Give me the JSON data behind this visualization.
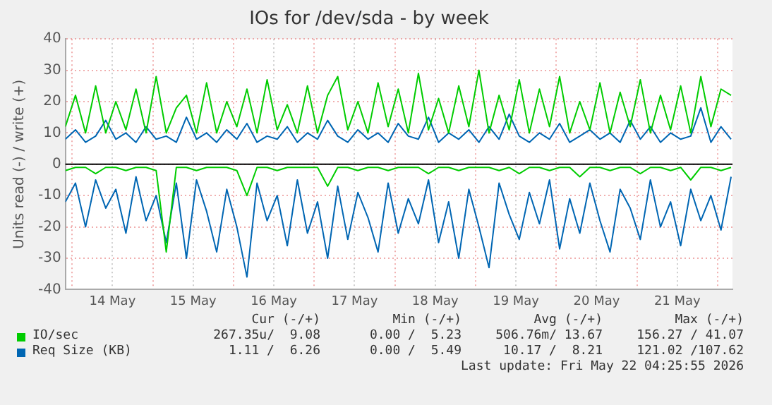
{
  "chart_data": {
    "type": "line",
    "title": "IOs for /dev/sda - by week",
    "ylabel": "Units read (-) / write (+)",
    "x": [
      "2026-05-13T22:00",
      "2026-05-14T01:00",
      "2026-05-14T04:00",
      "2026-05-14T07:00",
      "2026-05-14T10:00",
      "2026-05-14T13:00",
      "2026-05-14T16:00",
      "2026-05-14T19:00",
      "2026-05-14T22:00",
      "2026-05-15T01:00",
      "2026-05-15T04:00",
      "2026-05-15T07:00",
      "2026-05-15T10:00",
      "2026-05-15T13:00",
      "2026-05-15T16:00",
      "2026-05-15T19:00",
      "2026-05-15T22:00",
      "2026-05-16T01:00",
      "2026-05-16T04:00",
      "2026-05-16T07:00",
      "2026-05-16T10:00",
      "2026-05-16T13:00",
      "2026-05-16T16:00",
      "2026-05-16T19:00",
      "2026-05-16T22:00",
      "2026-05-17T01:00",
      "2026-05-17T04:00",
      "2026-05-17T07:00",
      "2026-05-17T10:00",
      "2026-05-17T13:00",
      "2026-05-17T16:00",
      "2026-05-17T19:00",
      "2026-05-17T22:00",
      "2026-05-18T01:00",
      "2026-05-18T04:00",
      "2026-05-18T07:00",
      "2026-05-18T10:00",
      "2026-05-18T13:00",
      "2026-05-18T16:00",
      "2026-05-18T19:00",
      "2026-05-18T22:00",
      "2026-05-19T01:00",
      "2026-05-19T04:00",
      "2026-05-19T07:00",
      "2026-05-19T10:00",
      "2026-05-19T13:00",
      "2026-05-19T16:00",
      "2026-05-19T19:00",
      "2026-05-19T22:00",
      "2026-05-20T01:00",
      "2026-05-20T04:00",
      "2026-05-20T07:00",
      "2026-05-20T10:00",
      "2026-05-20T13:00",
      "2026-05-20T16:00",
      "2026-05-20T19:00",
      "2026-05-20T22:00",
      "2026-05-21T01:00",
      "2026-05-21T04:00",
      "2026-05-21T07:00",
      "2026-05-21T10:00",
      "2026-05-21T13:00",
      "2026-05-21T16:00",
      "2026-05-21T19:00",
      "2026-05-21T22:00",
      "2026-05-22T01:00",
      "2026-05-22T04:00"
    ],
    "series": [
      {
        "name": "IO/sec",
        "color": "#00cc00",
        "values": [
          12,
          22,
          10,
          25,
          10,
          20,
          11,
          24,
          10,
          28,
          10,
          18,
          22,
          10,
          26,
          10,
          20,
          12,
          24,
          10,
          27,
          11,
          19,
          10,
          25,
          10,
          22,
          28,
          11,
          20,
          10,
          26,
          12,
          24,
          10,
          29,
          11,
          21,
          10,
          25,
          12,
          30,
          10,
          22,
          11,
          27,
          10,
          24,
          12,
          28,
          10,
          20,
          11,
          26,
          10,
          23,
          12,
          27,
          10,
          22,
          11,
          25,
          10,
          28,
          12,
          24,
          22
        ]
      },
      {
        "color": "#00cc00",
        "values": [
          -2,
          -1,
          -1,
          -3,
          -1,
          -1,
          -2,
          -1,
          -1,
          -2,
          -28,
          -1,
          -1,
          -2,
          -1,
          -1,
          -1,
          -2,
          -10,
          -1,
          -1,
          -2,
          -1,
          -1,
          -1,
          -1,
          -7,
          -1,
          -1,
          -2,
          -1,
          -1,
          -2,
          -1,
          -1,
          -1,
          -3,
          -1,
          -1,
          -2,
          -1,
          -1,
          -1,
          -2,
          -1,
          -3,
          -1,
          -1,
          -2,
          -1,
          -1,
          -4,
          -1,
          -1,
          -2,
          -1,
          -1,
          -3,
          -1,
          -1,
          -2,
          -1,
          -5,
          -1,
          -1,
          -2,
          -1
        ]
      },
      {
        "name": "Req Size (KB)",
        "color": "#0066b3",
        "values": [
          8,
          11,
          7,
          9,
          14,
          8,
          10,
          7,
          12,
          8,
          9,
          7,
          15,
          8,
          10,
          7,
          11,
          8,
          13,
          7,
          9,
          8,
          12,
          7,
          10,
          8,
          14,
          9,
          7,
          11,
          8,
          10,
          7,
          13,
          9,
          8,
          15,
          7,
          10,
          8,
          11,
          7,
          12,
          8,
          16,
          9,
          7,
          10,
          8,
          13,
          7,
          9,
          11,
          8,
          10,
          7,
          14,
          8,
          12,
          7,
          10,
          8,
          9,
          18,
          7,
          12,
          8
        ]
      },
      {
        "color": "#0066b3",
        "values": [
          -12,
          -6,
          -20,
          -5,
          -14,
          -8,
          -22,
          -4,
          -18,
          -10,
          -25,
          -6,
          -30,
          -5,
          -15,
          -28,
          -8,
          -20,
          -36,
          -6,
          -18,
          -10,
          -26,
          -5,
          -22,
          -12,
          -30,
          -7,
          -24,
          -9,
          -17,
          -28,
          -6,
          -22,
          -11,
          -19,
          -5,
          -25,
          -12,
          -30,
          -8,
          -20,
          -33,
          -6,
          -16,
          -24,
          -9,
          -19,
          -5,
          -27,
          -11,
          -22,
          -6,
          -18,
          -28,
          -8,
          -14,
          -24,
          -5,
          -20,
          -12,
          -26,
          -8,
          -18,
          -10,
          -21,
          -4
        ]
      }
    ],
    "xlim": [
      "2026-05-13T22:00",
      "2026-05-22T04:25"
    ],
    "xticks": [
      {
        "value": "2026-05-14T00:00",
        "label": null
      },
      {
        "value": "2026-05-14T12:00",
        "label": "14 May"
      },
      {
        "value": "2026-05-15T00:00",
        "label": null
      },
      {
        "value": "2026-05-15T12:00",
        "label": "15 May"
      },
      {
        "value": "2026-05-16T00:00",
        "label": null
      },
      {
        "value": "2026-05-16T12:00",
        "label": "16 May"
      },
      {
        "value": "2026-05-17T00:00",
        "label": null
      },
      {
        "value": "2026-05-17T12:00",
        "label": "17 May"
      },
      {
        "value": "2026-05-18T00:00",
        "label": null
      },
      {
        "value": "2026-05-18T12:00",
        "label": "18 May"
      },
      {
        "value": "2026-05-19T00:00",
        "label": null
      },
      {
        "value": "2026-05-19T12:00",
        "label": "19 May"
      },
      {
        "value": "2026-05-20T00:00",
        "label": null
      },
      {
        "value": "2026-05-20T12:00",
        "label": "20 May"
      },
      {
        "value": "2026-05-21T00:00",
        "label": null
      },
      {
        "value": "2026-05-21T12:00",
        "label": "21 May"
      },
      {
        "value": "2026-05-22T00:00",
        "label": null
      }
    ],
    "ylim": [
      -40,
      40
    ],
    "yticks": [
      -40,
      -30,
      -20,
      -10,
      0,
      10,
      20,
      30,
      40
    ],
    "ref_lines": [
      {
        "axis": "y",
        "value": 0,
        "color": "#000000"
      }
    ],
    "grid": true,
    "legend": "bottom",
    "annotations": [
      "Cur (-/+)",
      "Min (-/+)",
      "Avg (-/+)",
      "Max (-/+)",
      "267.35u/  9.08",
      "0.00 /  5.23",
      "506.76m/ 13.67",
      "156.27 / 41.07",
      "1.11 /  6.26",
      "0.00 /  5.49",
      "10.17 /  8.21",
      "121.02 /107.62",
      "Last update: Fri May 22 04:25:55 2026"
    ]
  }
}
